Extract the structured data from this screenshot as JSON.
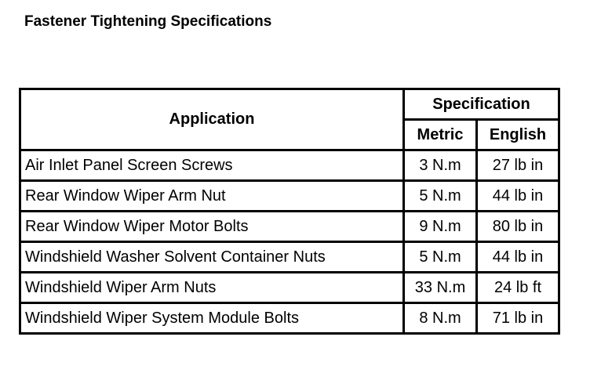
{
  "title": "Fastener Tightening Specifications",
  "headers": {
    "application": "Application",
    "specification": "Specification",
    "metric": "Metric",
    "english": "English"
  },
  "rows": [
    {
      "application": "Air Inlet Panel Screen Screws",
      "metric": "3 N.m",
      "english": "27 lb in"
    },
    {
      "application": "Rear Window Wiper Arm Nut",
      "metric": "5 N.m",
      "english": "44 lb in"
    },
    {
      "application": "Rear Window Wiper Motor Bolts",
      "metric": "9 N.m",
      "english": "80 lb in"
    },
    {
      "application": "Windshield Washer Solvent Container Nuts",
      "metric": "5 N.m",
      "english": "44 lb in"
    },
    {
      "application": "Windshield Wiper Arm Nuts",
      "metric": "33 N.m",
      "english": "24 lb ft"
    },
    {
      "application": "Windshield Wiper System Module Bolts",
      "metric": "8 N.m",
      "english": "71 lb in"
    }
  ]
}
